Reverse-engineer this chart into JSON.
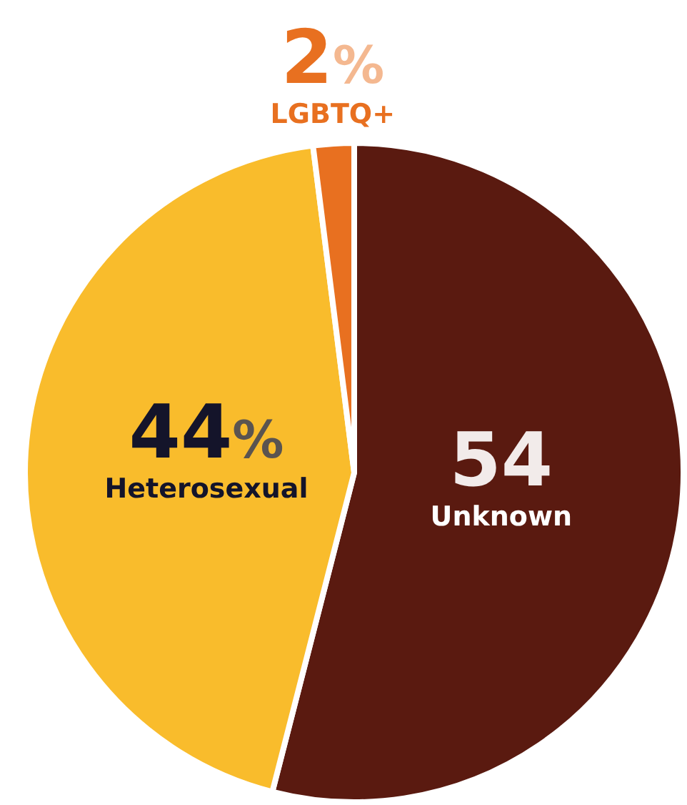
{
  "chart_data": {
    "type": "pie",
    "categories": [
      "Unknown",
      "Heterosexual",
      "LGBTQ+"
    ],
    "values": [
      54,
      44,
      2
    ],
    "colors": [
      "#5a1a10",
      "#f9bc2c",
      "#e87020"
    ],
    "value_labels": [
      "54",
      "44%",
      "2%"
    ]
  }
}
